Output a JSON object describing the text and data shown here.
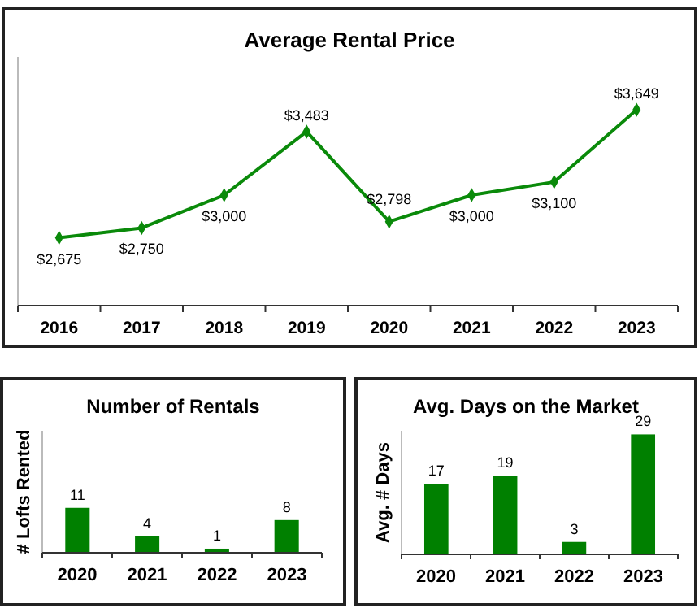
{
  "chart_data": [
    {
      "type": "line",
      "title": "Average Rental Price",
      "categories": [
        "2016",
        "2017",
        "2018",
        "2019",
        "2020",
        "2021",
        "2022",
        "2023"
      ],
      "series": [
        {
          "color": "#0a8a0a",
          "values": [
            2675,
            2750,
            3000,
            3483,
            2798,
            3000,
            3100,
            3649
          ],
          "value_labels": [
            "$2,675",
            "$2,750",
            "$3,000",
            "$3,483",
            "$2,798",
            "$3,000",
            "$3,100",
            "$3,649"
          ]
        }
      ],
      "marker": "diamond",
      "line_style": "solid"
    },
    {
      "type": "bar",
      "title": "Number of Rentals",
      "ylabel": "# Lofts Rented",
      "categories": [
        "2020",
        "2021",
        "2022",
        "2023"
      ],
      "series": [
        {
          "color": "#008000",
          "values": [
            11,
            4,
            1,
            8
          ]
        }
      ],
      "data_labels": true
    },
    {
      "type": "bar",
      "title": "Avg. Days on the Market",
      "ylabel": "Avg. # Days",
      "categories": [
        "2020",
        "2021",
        "2022",
        "2023"
      ],
      "series": [
        {
          "color": "#008000",
          "values": [
            17,
            19,
            3,
            29
          ]
        }
      ],
      "data_labels": true
    }
  ]
}
